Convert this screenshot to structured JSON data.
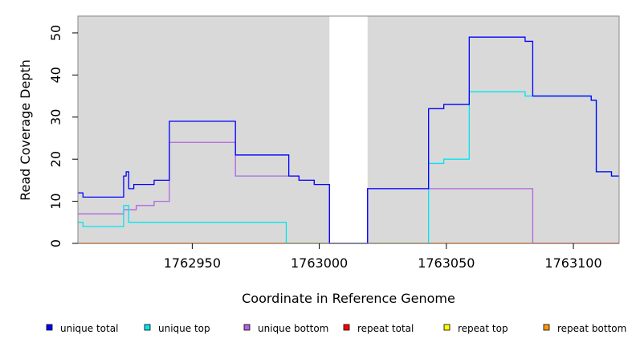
{
  "chart_data": {
    "type": "line",
    "title": "",
    "xlabel": "Coordinate in Reference Genome",
    "ylabel": "Read Coverage Depth",
    "xlim": [
      1762905,
      1763118
    ],
    "ylim": [
      0,
      54
    ],
    "x_ticks": [
      1762950,
      1763000,
      1763050,
      1763100
    ],
    "x_tick_labels": [
      "1762950",
      "1763000",
      "1763050",
      "1763100"
    ],
    "y_ticks": [
      0,
      10,
      20,
      30,
      40,
      50
    ],
    "y_tick_labels": [
      "0",
      "10",
      "20",
      "30",
      "40",
      "50"
    ],
    "grid": false,
    "gap_region": [
      1763004,
      1763019
    ],
    "legend_position": "bottom",
    "series": [
      {
        "name": "unique total",
        "color": "#0000ff",
        "x": [
          1762905,
          1762907,
          1762923,
          1762924,
          1762925,
          1762927,
          1762935,
          1762941,
          1762967,
          1762988,
          1762992,
          1762998,
          1763004,
          1763019,
          1763043,
          1763049,
          1763059,
          1763081,
          1763084,
          1763107,
          1763109,
          1763115,
          1763118
        ],
        "y": [
          12,
          11,
          16,
          17,
          13,
          14,
          15,
          29,
          21,
          16,
          15,
          14,
          0,
          13,
          32,
          33,
          49,
          48,
          35,
          34,
          17,
          16,
          16
        ],
        "step": "post"
      },
      {
        "name": "unique top",
        "color": "#00e5ee",
        "x": [
          1762905,
          1762907,
          1762923,
          1762925,
          1762987,
          1763004,
          1763019,
          1763043,
          1763049,
          1763059,
          1763081,
          1763084,
          1763107,
          1763109,
          1763115,
          1763118
        ],
        "y": [
          5,
          4,
          9,
          5,
          0,
          0,
          0,
          19,
          20,
          36,
          35,
          35,
          34,
          17,
          16,
          16
        ],
        "step": "post"
      },
      {
        "name": "unique bottom",
        "color": "#b066e0",
        "x": [
          1762905,
          1762923,
          1762925,
          1762928,
          1762935,
          1762941,
          1762967,
          1762988,
          1762992,
          1762998,
          1763004,
          1763019,
          1763084,
          1763118
        ],
        "y": [
          7,
          8,
          8,
          9,
          10,
          24,
          16,
          16,
          15,
          14,
          0,
          13,
          0,
          0
        ],
        "step": "post"
      },
      {
        "name": "repeat total",
        "color": "#ff0000",
        "x": [
          1762905,
          1763118
        ],
        "y": [
          0,
          0
        ],
        "step": "post"
      },
      {
        "name": "repeat top",
        "color": "#ffff00",
        "x": [
          1762905,
          1763118
        ],
        "y": [
          0,
          0
        ],
        "step": "post"
      },
      {
        "name": "repeat bottom",
        "color": "#ff9900",
        "x": [
          1762905,
          1763118
        ],
        "y": [
          0,
          0
        ],
        "step": "post"
      }
    ]
  }
}
